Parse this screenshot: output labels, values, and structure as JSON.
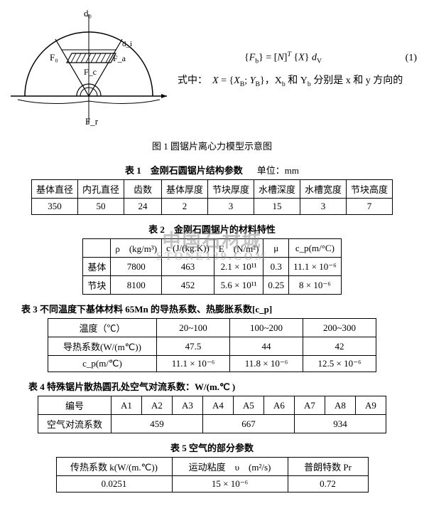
{
  "figure1": {
    "labels": {
      "top": "d₀",
      "left": "F₀",
      "center": "F_c",
      "right": "F_a",
      "bottom": "F_r",
      "right_small": "d_i"
    },
    "caption": "图 1 圆锯片离心力模型示意图"
  },
  "equation": {
    "formula_html": "{<i>F</i><sub>b</sub>} = [<i>N</i>]<sup><i>T</i></sup> {<i>X</i>} <i>d</i><sub>V</sub>",
    "number": "(1)",
    "where_html": "式中：&nbsp;&nbsp;<i>X</i> = {<i>X</i><sub>B</sub>; <i>Y</i><sub>B</sub>}，X<sub>b</sub> 和 Y<sub>b</sub> 分别是 x 和 y 方向的"
  },
  "table1": {
    "caption": "表 1　金刚石圆锯片结构参数",
    "unit": "单位：mm",
    "headers": [
      "基体直径",
      "内孔直径",
      "齿数",
      "基体厚度",
      "节块厚度",
      "水槽深度",
      "水槽宽度",
      "节块高度"
    ],
    "row": [
      "350",
      "50",
      "24",
      "2",
      "3",
      "15",
      "3",
      "7"
    ]
  },
  "table2": {
    "caption": "表 2　金刚石圆锯片的材料特性",
    "headers": [
      "",
      "ρ　(kg/m³)",
      "c  (J/(kg.K))",
      "E　(N/m²)",
      "μ",
      "c_p(m/°C)"
    ],
    "rows": [
      [
        "基体",
        "7800",
        "463",
        "2.1 × 10¹¹",
        "0.3",
        "11.1 × 10⁻⁶"
      ],
      [
        "节块",
        "8100",
        "452",
        "5.6 × 10¹¹",
        "0.25",
        "8 × 10⁻⁶"
      ]
    ]
  },
  "table3": {
    "caption": "表 3  不同温度下基体材料 65Mn 的导热系数、热膨胀系数[c_p]",
    "headers": [
      "温度（℃）",
      "20~100",
      "100~200",
      "200~300"
    ],
    "rows": [
      [
        "导热系数(W/(m℃))",
        "47.5",
        "44",
        "42"
      ],
      [
        "c_p(m/℃)",
        "11.1 × 10⁻⁶",
        "11.8 × 10⁻⁶",
        "12.5 × 10⁻⁶"
      ]
    ]
  },
  "table4": {
    "caption": "表 4  特殊锯片散热圆孔处空气对流系数：W/(m.℃ )",
    "headers": [
      "编号",
      "A1",
      "A2",
      "A3",
      "A4",
      "A5",
      "A6",
      "A7",
      "A8",
      "A9"
    ],
    "row_label": "空气对流系数",
    "values": [
      "459",
      "667",
      "934"
    ]
  },
  "table5": {
    "caption": "表 5  空气的部分参数",
    "headers": [
      "传热系数 k(W/(m.℃))",
      "运动粘度　υ　(m²/s)",
      "普朗特数 Pr"
    ],
    "row": [
      "0.0251",
      "15 × 10⁻⁶",
      "0.72"
    ]
  },
  "watermark": {
    "line1": "中国石材城",
    "line2": "STONE139.COM"
  }
}
